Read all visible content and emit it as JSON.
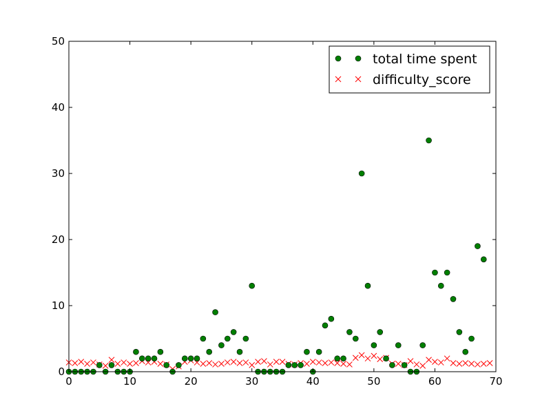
{
  "chart_data": {
    "type": "scatter",
    "title": "",
    "xlabel": "",
    "ylabel": "",
    "xlim": [
      0,
      70
    ],
    "ylim": [
      0,
      50
    ],
    "xticks": [
      0,
      10,
      20,
      30,
      40,
      50,
      60,
      70
    ],
    "yticks": [
      0,
      10,
      20,
      30,
      40,
      50
    ],
    "grid": false,
    "legend_position": "top-right",
    "series": [
      {
        "name": "total time spent",
        "marker": "circle",
        "color": "#007f00",
        "values": [
          0,
          0,
          0,
          0,
          0,
          1,
          0,
          1,
          0,
          0,
          0,
          3,
          2,
          2,
          2,
          3,
          1,
          0,
          1,
          2,
          2,
          2,
          5,
          3,
          9,
          4,
          5,
          6,
          3,
          5,
          13,
          0,
          0,
          0,
          0,
          0,
          1,
          1,
          1,
          3,
          0,
          3,
          7,
          8,
          2,
          2,
          6,
          5,
          30,
          13,
          4,
          6,
          2,
          1,
          4,
          1,
          0,
          0,
          4,
          35,
          15,
          13,
          15,
          11,
          6,
          3,
          5,
          19,
          17
        ]
      },
      {
        "name": "difficulty_score",
        "marker": "x",
        "color": "#ff0000",
        "values": [
          1.4,
          1.3,
          1.5,
          1.2,
          1.4,
          1.1,
          0.9,
          1.8,
          1.2,
          1.4,
          1.2,
          1.3,
          1.6,
          1.4,
          1.5,
          1.2,
          1.1,
          0.4,
          0.8,
          1.5,
          1.7,
          1.4,
          1.2,
          1.3,
          1.1,
          1.2,
          1.4,
          1.5,
          1.3,
          1.4,
          1.0,
          1.5,
          1.6,
          1.1,
          1.5,
          1.5,
          1.2,
          1.1,
          1.3,
          1.2,
          1.5,
          1.4,
          1.3,
          1.4,
          1.3,
          1.2,
          1.1,
          2.1,
          2.5,
          2.0,
          2.4,
          1.9,
          2.1,
          1.2,
          1.2,
          1.0,
          1.6,
          1.1,
          0.9,
          1.8,
          1.5,
          1.4,
          2.0,
          1.3,
          1.2,
          1.3,
          1.2,
          1.1,
          1.2,
          1.3
        ]
      }
    ]
  }
}
